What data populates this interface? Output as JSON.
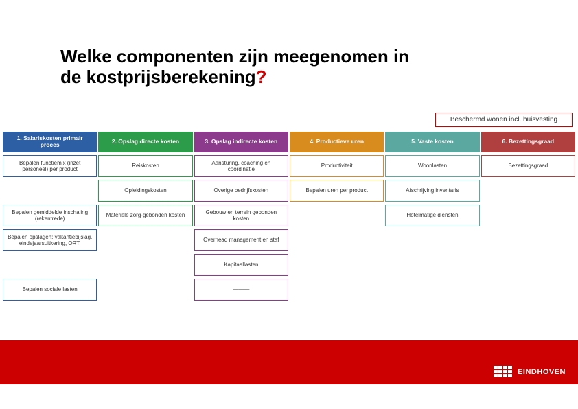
{
  "title_line1": "Welke componenten zijn meegenomen in",
  "title_line2": "de kostprijsberekening",
  "title_punct": "?",
  "context_label": "Beschermd wonen incl. huisvesting",
  "colors": {
    "hdr1": "#2d5fa5",
    "hdr2": "#2d9c4a",
    "hdr3": "#8c3b8c",
    "hdr4": "#d98c1e",
    "hdr5": "#5aa8a0",
    "hdr6": "#b04040",
    "sub_border1": "#2d5fa5",
    "sub_border2": "#2d9c4a",
    "sub_border3": "#8c3b8c",
    "sub_border4": "#d98c1e",
    "sub_border5": "#5aa8a0",
    "sub_border6": "#b04040",
    "accent": "#cc0000",
    "band": "#cc0000"
  },
  "columns": [
    {
      "header": "1. Salariskosten primair proces",
      "items": [
        "Bepalen functiemix (inzet personeel) per product",
        "",
        "Bepalen gemiddelde inschaling (rekentrede)",
        "Bepalen opslagen: vakantiebijslag, eindejaarsuitkering, ORT,",
        "",
        "Bepalen sociale lasten"
      ]
    },
    {
      "header": "2. Opslag directe kosten",
      "items": [
        "Reiskosten",
        "Opleidingskosten",
        "Materiele zorg-gebonden kosten",
        "",
        "",
        ""
      ]
    },
    {
      "header": "3. Opslag indirecte kosten",
      "items": [
        "Aansturing, coaching en coördinatie",
        "Overige bedrijfskosten",
        "Gebouw en terrein gebonden kosten",
        "Overhead management en staf",
        "Kapitaallasten",
        "———"
      ]
    },
    {
      "header": "4. Productieve uren",
      "items": [
        "Productiviteit",
        "Bepalen uren per product",
        "",
        "",
        "",
        ""
      ]
    },
    {
      "header": "5. Vaste kosten",
      "items": [
        "Woonlasten",
        "Afschrijving inventaris",
        "Hotelmatige diensten",
        "",
        "",
        ""
      ]
    },
    {
      "header": "6. Bezettingsgraad",
      "items": [
        "Bezettingsgraad",
        "",
        "",
        "",
        "",
        ""
      ]
    }
  ],
  "logo_text": "EINDHOVEN"
}
